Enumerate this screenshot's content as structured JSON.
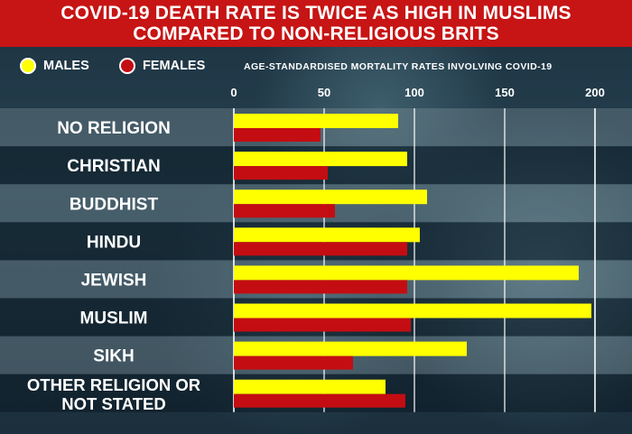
{
  "title": {
    "line1": "COVID-19 DEATH RATE IS TWICE AS HIGH IN MUSLIMS",
    "line2": "COMPARED TO NON-RELIGIOUS BRITS"
  },
  "legend": {
    "males": "MALES",
    "females": "FEMALES"
  },
  "colors": {
    "banner": "#c71414",
    "males": "#ffff00",
    "females": "#c40d12",
    "text": "#ffffff"
  },
  "chart_data": {
    "type": "bar",
    "orientation": "horizontal",
    "xlabel": "AGE-STANDARDISED MORTALITY RATES INVOLVING COVID-19",
    "xlim": [
      0,
      200
    ],
    "xticks": [
      0,
      50,
      100,
      150,
      200
    ],
    "grid": true,
    "legend_position": "top-left",
    "categories": [
      "NO RELIGION",
      "CHRISTIAN",
      "BUDDHIST",
      "HINDU",
      "JEWISH",
      "MUSLIM",
      "SIKH",
      "OTHER RELIGION OR NOT STATED"
    ],
    "series": [
      {
        "name": "MALES",
        "values": [
          91,
          96,
          107,
          103,
          191,
          198,
          129,
          84
        ]
      },
      {
        "name": "FEMALES",
        "values": [
          48,
          52,
          56,
          96,
          96,
          98,
          66,
          95
        ]
      }
    ]
  }
}
